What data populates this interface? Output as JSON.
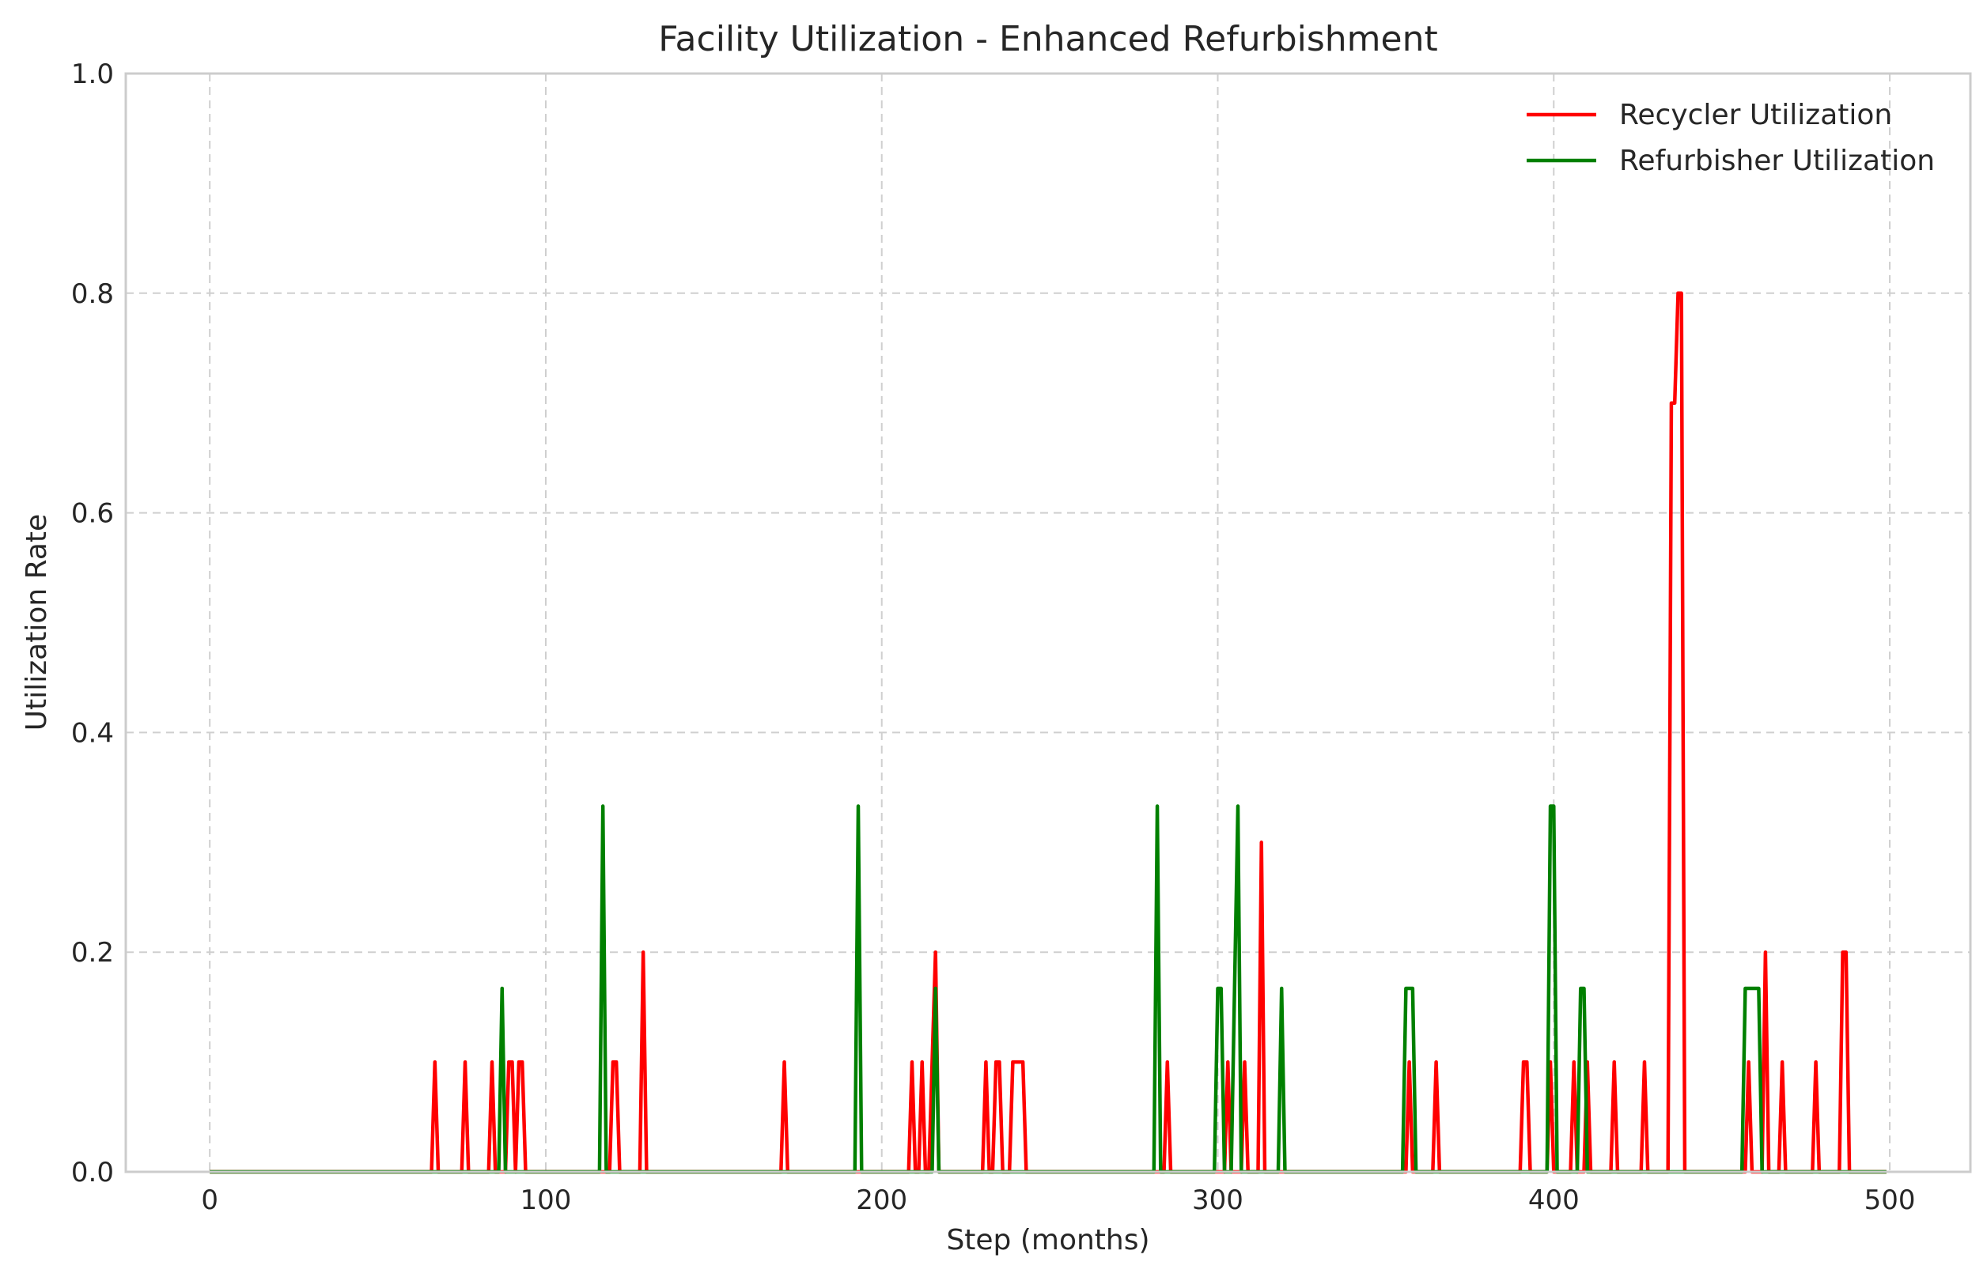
{
  "chart_data": {
    "type": "line",
    "title": "Facility Utilization - Enhanced Refurbishment",
    "xlabel": "Step (months)",
    "ylabel": "Utilization Rate",
    "xlim": [
      -25,
      524
    ],
    "ylim": [
      0,
      1.0
    ],
    "xticks": [
      0,
      100,
      200,
      300,
      400,
      500
    ],
    "yticks": [
      0.0,
      0.2,
      0.4,
      0.6,
      0.8,
      1.0
    ],
    "xtick_labels": [
      "0",
      "100",
      "200",
      "300",
      "400",
      "500"
    ],
    "ytick_labels": [
      "0.0",
      "0.2",
      "0.4",
      "0.6",
      "0.8",
      "1.0"
    ],
    "grid": true,
    "legend_position": "top-right",
    "x_range": [
      0,
      499
    ],
    "series": [
      {
        "name": "Recycler Utilization",
        "color": "#ff0000",
        "spikes": [
          [
            67,
            0.1
          ],
          [
            76,
            0.1
          ],
          [
            84,
            0.1
          ],
          [
            89,
            0.1
          ],
          [
            90,
            0.1
          ],
          [
            92,
            0.1
          ],
          [
            93,
            0.1
          ],
          [
            120,
            0.1
          ],
          [
            121,
            0.1
          ],
          [
            129,
            0.2
          ],
          [
            171,
            0.1
          ],
          [
            209,
            0.1
          ],
          [
            212,
            0.1
          ],
          [
            215,
            0.1
          ],
          [
            216,
            0.2
          ],
          [
            231,
            0.1
          ],
          [
            234,
            0.1
          ],
          [
            235,
            0.1
          ],
          [
            239,
            0.1
          ],
          [
            240,
            0.1
          ],
          [
            241,
            0.1
          ],
          [
            242,
            0.1
          ],
          [
            285,
            0.1
          ],
          [
            303,
            0.1
          ],
          [
            308,
            0.1
          ],
          [
            313,
            0.3
          ],
          [
            357,
            0.1
          ],
          [
            365,
            0.1
          ],
          [
            391,
            0.1
          ],
          [
            392,
            0.1
          ],
          [
            399,
            0.1
          ],
          [
            406,
            0.1
          ],
          [
            410,
            0.1
          ],
          [
            418,
            0.1
          ],
          [
            427,
            0.1
          ],
          [
            435,
            0.7
          ],
          [
            436,
            0.7
          ],
          [
            437,
            0.8
          ],
          [
            438,
            0.8
          ],
          [
            458,
            0.1
          ],
          [
            463,
            0.2
          ],
          [
            468,
            0.1
          ],
          [
            478,
            0.1
          ],
          [
            486,
            0.2
          ],
          [
            487,
            0.2
          ]
        ]
      },
      {
        "name": "Refurbisher Utilization",
        "color": "#008000",
        "spikes": [
          [
            87,
            0.167
          ],
          [
            117,
            0.333
          ],
          [
            193,
            0.333
          ],
          [
            216,
            0.167
          ],
          [
            282,
            0.333
          ],
          [
            300,
            0.167
          ],
          [
            301,
            0.167
          ],
          [
            305,
            0.167
          ],
          [
            306,
            0.333
          ],
          [
            319,
            0.167
          ],
          [
            356,
            0.167
          ],
          [
            357,
            0.167
          ],
          [
            358,
            0.167
          ],
          [
            399,
            0.333
          ],
          [
            400,
            0.333
          ],
          [
            408,
            0.167
          ],
          [
            409,
            0.167
          ],
          [
            457,
            0.167
          ],
          [
            458,
            0.167
          ],
          [
            459,
            0.167
          ],
          [
            460,
            0.167
          ],
          [
            461,
            0.167
          ]
        ]
      }
    ]
  }
}
